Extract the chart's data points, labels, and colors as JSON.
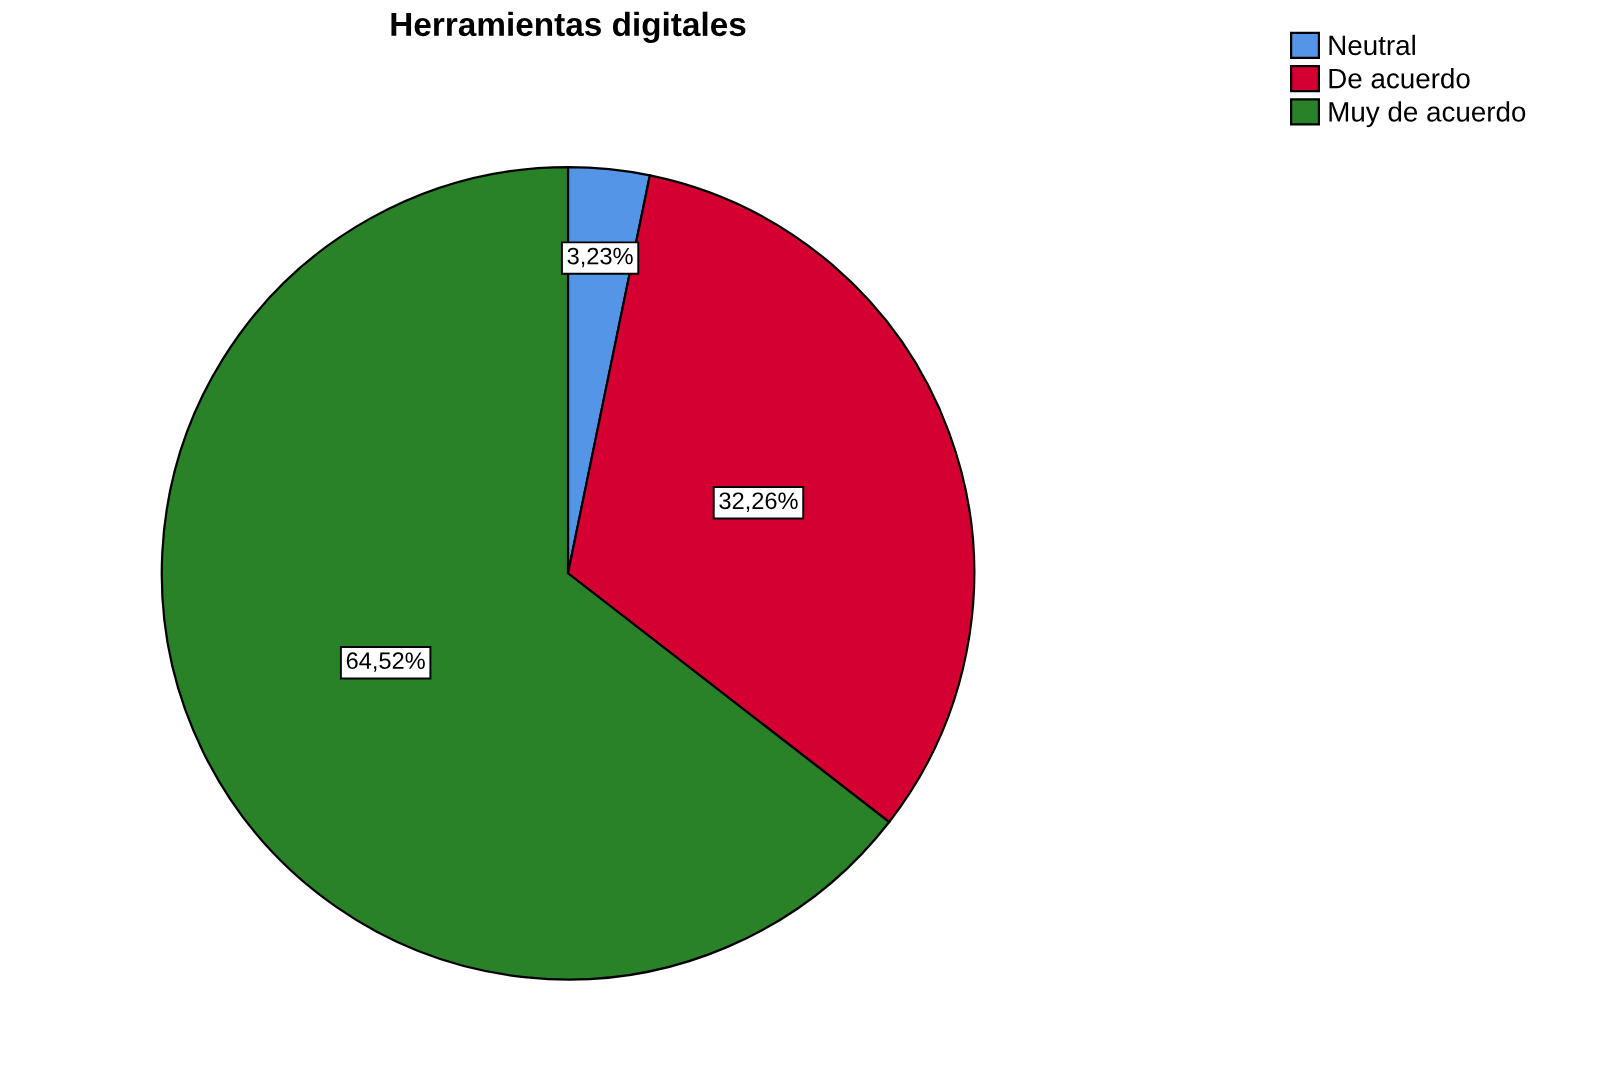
{
  "chart_data": {
    "type": "pie",
    "title": "Herramientas digitales",
    "categories": [
      "Neutral",
      "De acuerdo",
      "Muy de acuerdo"
    ],
    "values": [
      3.23,
      32.26,
      64.52
    ],
    "colors": [
      "#5495e8",
      "#d50032",
      "#2a8228"
    ],
    "value_labels": [
      "3,23%",
      "32,26%",
      "64,52%"
    ],
    "legend": "top right"
  }
}
